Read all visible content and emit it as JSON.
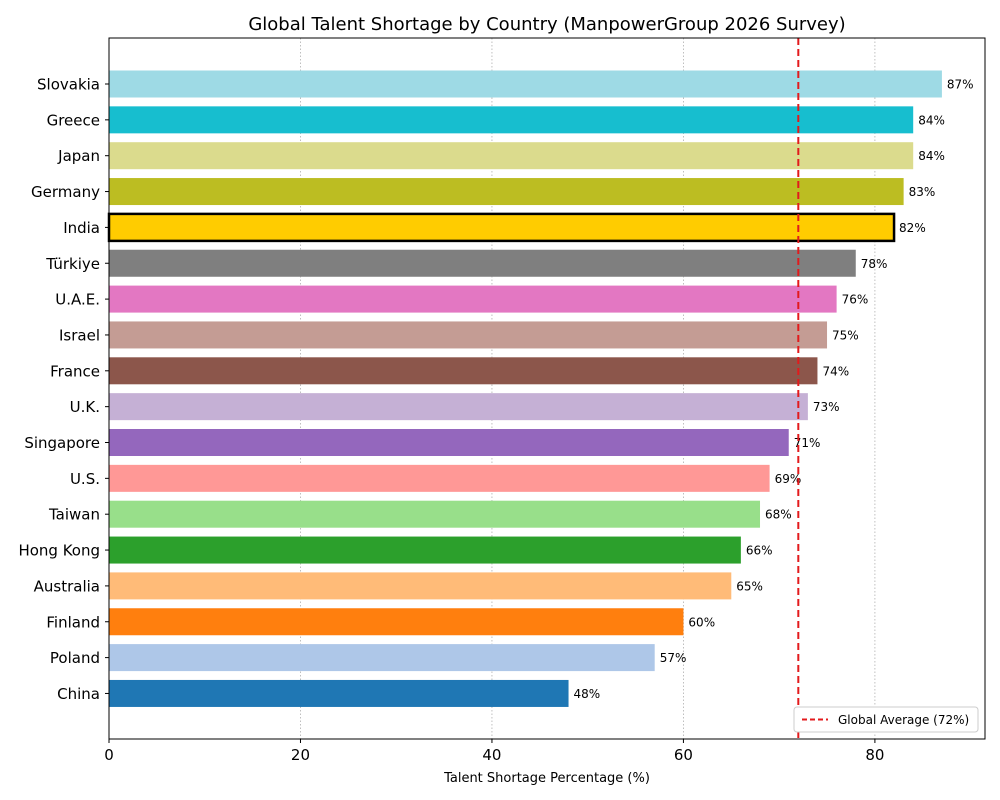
{
  "chart_data": {
    "type": "bar",
    "orientation": "horizontal",
    "title": "Global Talent Shortage by Country (ManpowerGroup 2026 Survey)",
    "xlabel": "Talent Shortage Percentage (%)",
    "ylabel": "",
    "xlim": [
      0,
      91.5
    ],
    "xticks": [
      0,
      20,
      40,
      60,
      80
    ],
    "grid": "vertical dotted",
    "categories": [
      "Slovakia",
      "Greece",
      "Japan",
      "Germany",
      "India",
      "Türkiye",
      "U.A.E.",
      "Israel",
      "France",
      "U.K.",
      "Singapore",
      "U.S.",
      "Taiwan",
      "Hong Kong",
      "Australia",
      "Finland",
      "Poland",
      "China"
    ],
    "values": [
      87,
      84,
      84,
      83,
      82,
      78,
      76,
      75,
      74,
      73,
      71,
      69,
      68,
      66,
      65,
      60,
      57,
      48
    ],
    "value_suffix": "%",
    "colors": [
      "#9edae5",
      "#17becf",
      "#dbdb8d",
      "#bcbd22",
      "#ffcc00",
      "#7f7f7f",
      "#e377c2",
      "#c49c94",
      "#8c564b",
      "#c5b0d5",
      "#9467bd",
      "#ff9896",
      "#98df8a",
      "#2ca02c",
      "#ffbb78",
      "#ff7f0e",
      "#aec7e8",
      "#1f77b4"
    ],
    "highlight": "India",
    "reference_line": {
      "value": 72,
      "label": "Global Average (72%)",
      "color": "#e31a1c",
      "style": "dashed"
    },
    "legend_position": "bottom-right"
  }
}
